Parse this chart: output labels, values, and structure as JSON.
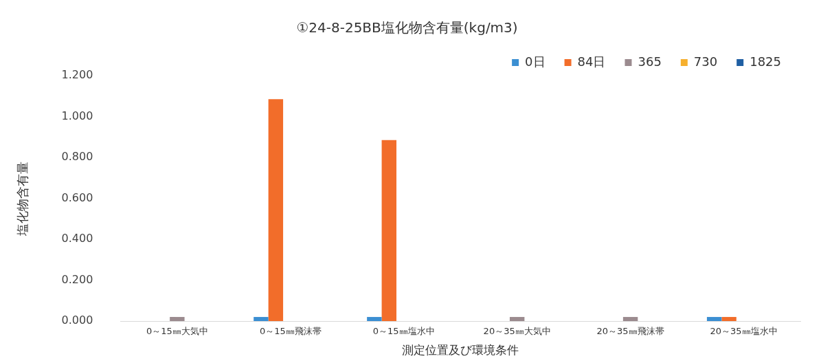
{
  "chart_data": {
    "type": "bar",
    "title": "①24-8-25BB塩化物含有量(kg/m3)",
    "xlabel": "測定位置及び環境条件",
    "ylabel": "塩化物含有量",
    "categories": [
      "0～15㎜大気中",
      "0～15㎜飛沫帯",
      "0～15㎜塩水中",
      "20～35㎜大気中",
      "20～35㎜飛沫帯",
      "20～35㎜塩水中"
    ],
    "series": [
      {
        "name": "0日",
        "color": "#3b8fd2",
        "values": [
          null,
          0.02,
          0.02,
          null,
          null,
          0.02
        ]
      },
      {
        "name": "84日",
        "color": "#f26d2a",
        "values": [
          null,
          1.085,
          0.885,
          null,
          null,
          0.02
        ]
      },
      {
        "name": "365",
        "color": "#9b8b8f",
        "values": [
          0.02,
          null,
          null,
          0.02,
          0.02,
          null
        ]
      },
      {
        "name": "730",
        "color": "#f6b02e",
        "values": [
          null,
          null,
          null,
          null,
          null,
          null
        ]
      },
      {
        "name": "1825",
        "color": "#1f5fa3",
        "values": [
          null,
          null,
          null,
          null,
          null,
          null
        ]
      }
    ],
    "ylim": [
      0,
      1.2
    ],
    "yticks": [
      {
        "value": 0,
        "label": "0.000"
      },
      {
        "value": 0.2,
        "label": "0.200"
      },
      {
        "value": 0.4,
        "label": "0.400"
      },
      {
        "value": 0.6,
        "label": "0.600"
      },
      {
        "value": 0.8,
        "label": "0.800"
      },
      {
        "value": 1,
        "label": "1.000"
      },
      {
        "value": 1.2,
        "label": "1.200"
      }
    ],
    "grid": false,
    "legend": "top right"
  }
}
